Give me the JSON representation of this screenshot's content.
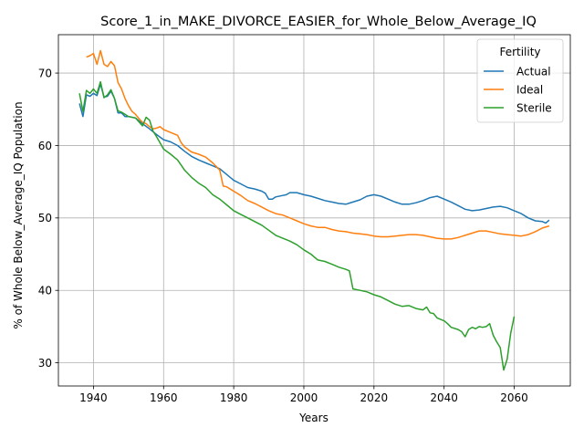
{
  "chart_data": {
    "type": "line",
    "title": "Score_1_in_MAKE_DIVORCE_EASIER_for_Whole_Below_Average_IQ",
    "xlabel": "Years",
    "ylabel": "% of Whole Below_Average_IQ Population",
    "xlim": [
      1930,
      2076
    ],
    "ylim": [
      26.8,
      75.3
    ],
    "xticks": [
      1940,
      1960,
      1980,
      2000,
      2020,
      2040,
      2060
    ],
    "yticks": [
      30,
      40,
      50,
      60,
      70
    ],
    "grid": true,
    "legend": {
      "title": "Fertility",
      "position": "top-right"
    },
    "series": [
      {
        "name": "Actual",
        "color": "#1f77b4",
        "points": [
          [
            1936,
            65.8
          ],
          [
            1937,
            64.0
          ],
          [
            1938,
            67.0
          ],
          [
            1939,
            66.8
          ],
          [
            1940,
            67.2
          ],
          [
            1941,
            66.9
          ],
          [
            1942,
            68.5
          ],
          [
            1943,
            66.7
          ],
          [
            1944,
            66.8
          ],
          [
            1945,
            67.5
          ],
          [
            1946,
            66.5
          ],
          [
            1947,
            64.5
          ],
          [
            1948,
            64.5
          ],
          [
            1949,
            64.0
          ],
          [
            1950,
            64.0
          ],
          [
            1952,
            63.8
          ],
          [
            1954,
            63.0
          ],
          [
            1956,
            62.3
          ],
          [
            1958,
            61.5
          ],
          [
            1960,
            60.8
          ],
          [
            1962,
            60.5
          ],
          [
            1964,
            60.0
          ],
          [
            1966,
            59.2
          ],
          [
            1968,
            58.5
          ],
          [
            1970,
            58.0
          ],
          [
            1972,
            57.6
          ],
          [
            1974,
            57.2
          ],
          [
            1976,
            56.8
          ],
          [
            1978,
            56.0
          ],
          [
            1980,
            55.2
          ],
          [
            1982,
            54.7
          ],
          [
            1984,
            54.2
          ],
          [
            1986,
            54.0
          ],
          [
            1988,
            53.7
          ],
          [
            1989,
            53.4
          ],
          [
            1990,
            52.6
          ],
          [
            1991,
            52.6
          ],
          [
            1992,
            52.9
          ],
          [
            1994,
            53.1
          ],
          [
            1995,
            53.2
          ],
          [
            1996,
            53.5
          ],
          [
            1998,
            53.5
          ],
          [
            2000,
            53.2
          ],
          [
            2002,
            53.0
          ],
          [
            2004,
            52.7
          ],
          [
            2006,
            52.4
          ],
          [
            2008,
            52.2
          ],
          [
            2010,
            52.0
          ],
          [
            2012,
            51.9
          ],
          [
            2014,
            52.2
          ],
          [
            2016,
            52.5
          ],
          [
            2018,
            53.0
          ],
          [
            2020,
            53.2
          ],
          [
            2022,
            53.0
          ],
          [
            2024,
            52.6
          ],
          [
            2026,
            52.2
          ],
          [
            2028,
            51.9
          ],
          [
            2030,
            51.9
          ],
          [
            2032,
            52.1
          ],
          [
            2034,
            52.4
          ],
          [
            2036,
            52.8
          ],
          [
            2038,
            53.0
          ],
          [
            2040,
            52.6
          ],
          [
            2042,
            52.2
          ],
          [
            2044,
            51.7
          ],
          [
            2046,
            51.2
          ],
          [
            2048,
            51.0
          ],
          [
            2050,
            51.1
          ],
          [
            2052,
            51.3
          ],
          [
            2054,
            51.5
          ],
          [
            2056,
            51.6
          ],
          [
            2058,
            51.4
          ],
          [
            2060,
            51.0
          ],
          [
            2062,
            50.6
          ],
          [
            2064,
            50.0
          ],
          [
            2066,
            49.6
          ],
          [
            2068,
            49.5
          ],
          [
            2069,
            49.3
          ],
          [
            2070,
            49.7
          ]
        ]
      },
      {
        "name": "Ideal",
        "color": "#ff7f0e",
        "points": [
          [
            1938,
            72.2
          ],
          [
            1939,
            72.4
          ],
          [
            1940,
            72.7
          ],
          [
            1941,
            71.2
          ],
          [
            1942,
            73.1
          ],
          [
            1943,
            71.2
          ],
          [
            1944,
            70.9
          ],
          [
            1945,
            71.6
          ],
          [
            1946,
            71.0
          ],
          [
            1947,
            68.7
          ],
          [
            1948,
            67.8
          ],
          [
            1949,
            66.5
          ],
          [
            1950,
            65.5
          ],
          [
            1951,
            64.7
          ],
          [
            1952,
            64.3
          ],
          [
            1953,
            63.7
          ],
          [
            1954,
            63.2
          ],
          [
            1955,
            63.0
          ],
          [
            1956,
            62.6
          ],
          [
            1957,
            62.3
          ],
          [
            1958,
            62.4
          ],
          [
            1959,
            62.6
          ],
          [
            1960,
            62.2
          ],
          [
            1962,
            61.8
          ],
          [
            1964,
            61.4
          ],
          [
            1965,
            60.4
          ],
          [
            1966,
            59.8
          ],
          [
            1968,
            59.1
          ],
          [
            1970,
            58.8
          ],
          [
            1972,
            58.4
          ],
          [
            1974,
            57.6
          ],
          [
            1976,
            56.6
          ],
          [
            1977,
            54.4
          ],
          [
            1978,
            54.3
          ],
          [
            1980,
            53.7
          ],
          [
            1982,
            53.1
          ],
          [
            1984,
            52.4
          ],
          [
            1986,
            52.0
          ],
          [
            1988,
            51.5
          ],
          [
            1990,
            51.0
          ],
          [
            1992,
            50.6
          ],
          [
            1994,
            50.4
          ],
          [
            1996,
            50.0
          ],
          [
            1998,
            49.6
          ],
          [
            2000,
            49.2
          ],
          [
            2002,
            48.9
          ],
          [
            2004,
            48.7
          ],
          [
            2006,
            48.7
          ],
          [
            2008,
            48.4
          ],
          [
            2010,
            48.2
          ],
          [
            2012,
            48.1
          ],
          [
            2014,
            47.9
          ],
          [
            2016,
            47.8
          ],
          [
            2018,
            47.7
          ],
          [
            2020,
            47.5
          ],
          [
            2022,
            47.4
          ],
          [
            2024,
            47.4
          ],
          [
            2026,
            47.5
          ],
          [
            2028,
            47.6
          ],
          [
            2030,
            47.7
          ],
          [
            2032,
            47.7
          ],
          [
            2034,
            47.6
          ],
          [
            2036,
            47.4
          ],
          [
            2038,
            47.2
          ],
          [
            2040,
            47.1
          ],
          [
            2042,
            47.1
          ],
          [
            2044,
            47.3
          ],
          [
            2046,
            47.6
          ],
          [
            2048,
            47.9
          ],
          [
            2050,
            48.2
          ],
          [
            2052,
            48.2
          ],
          [
            2054,
            48.0
          ],
          [
            2056,
            47.8
          ],
          [
            2058,
            47.7
          ],
          [
            2060,
            47.6
          ],
          [
            2062,
            47.5
          ],
          [
            2064,
            47.7
          ],
          [
            2066,
            48.1
          ],
          [
            2068,
            48.6
          ],
          [
            2070,
            48.9
          ]
        ]
      },
      {
        "name": "Sterile",
        "color": "#2ca02c",
        "points": [
          [
            1936,
            67.2
          ],
          [
            1937,
            64.7
          ],
          [
            1938,
            67.6
          ],
          [
            1939,
            67.2
          ],
          [
            1940,
            67.8
          ],
          [
            1941,
            67.2
          ],
          [
            1942,
            68.8
          ],
          [
            1943,
            66.6
          ],
          [
            1944,
            67.0
          ],
          [
            1945,
            67.7
          ],
          [
            1946,
            66.5
          ],
          [
            1947,
            64.8
          ],
          [
            1948,
            64.6
          ],
          [
            1949,
            64.3
          ],
          [
            1950,
            64.0
          ],
          [
            1952,
            63.8
          ],
          [
            1954,
            62.7
          ],
          [
            1955,
            63.9
          ],
          [
            1956,
            63.5
          ],
          [
            1957,
            62.0
          ],
          [
            1958,
            61.2
          ],
          [
            1960,
            59.5
          ],
          [
            1962,
            58.8
          ],
          [
            1964,
            58.0
          ],
          [
            1966,
            56.6
          ],
          [
            1968,
            55.6
          ],
          [
            1970,
            54.8
          ],
          [
            1972,
            54.2
          ],
          [
            1974,
            53.2
          ],
          [
            1976,
            52.6
          ],
          [
            1978,
            51.8
          ],
          [
            1980,
            51.0
          ],
          [
            1982,
            50.5
          ],
          [
            1984,
            50.0
          ],
          [
            1986,
            49.5
          ],
          [
            1988,
            49.0
          ],
          [
            1990,
            48.3
          ],
          [
            1992,
            47.6
          ],
          [
            1994,
            47.2
          ],
          [
            1996,
            46.8
          ],
          [
            1998,
            46.3
          ],
          [
            2000,
            45.6
          ],
          [
            2002,
            45.0
          ],
          [
            2004,
            44.2
          ],
          [
            2006,
            44.0
          ],
          [
            2008,
            43.6
          ],
          [
            2010,
            43.2
          ],
          [
            2012,
            42.9
          ],
          [
            2013,
            42.7
          ],
          [
            2014,
            40.2
          ],
          [
            2016,
            40.0
          ],
          [
            2018,
            39.8
          ],
          [
            2020,
            39.4
          ],
          [
            2022,
            39.1
          ],
          [
            2024,
            38.6
          ],
          [
            2026,
            38.1
          ],
          [
            2028,
            37.8
          ],
          [
            2030,
            37.9
          ],
          [
            2032,
            37.5
          ],
          [
            2034,
            37.3
          ],
          [
            2035,
            37.7
          ],
          [
            2036,
            36.9
          ],
          [
            2037,
            36.8
          ],
          [
            2038,
            36.2
          ],
          [
            2040,
            35.8
          ],
          [
            2041,
            35.4
          ],
          [
            2042,
            34.9
          ],
          [
            2044,
            34.6
          ],
          [
            2045,
            34.3
          ],
          [
            2046,
            33.6
          ],
          [
            2047,
            34.6
          ],
          [
            2048,
            34.9
          ],
          [
            2049,
            34.7
          ],
          [
            2050,
            35.0
          ],
          [
            2051,
            34.9
          ],
          [
            2052,
            35.0
          ],
          [
            2053,
            35.4
          ],
          [
            2054,
            33.8
          ],
          [
            2055,
            32.9
          ],
          [
            2056,
            32.1
          ],
          [
            2057,
            29.0
          ],
          [
            2058,
            30.5
          ],
          [
            2059,
            34.1
          ],
          [
            2060,
            36.4
          ]
        ]
      }
    ]
  }
}
